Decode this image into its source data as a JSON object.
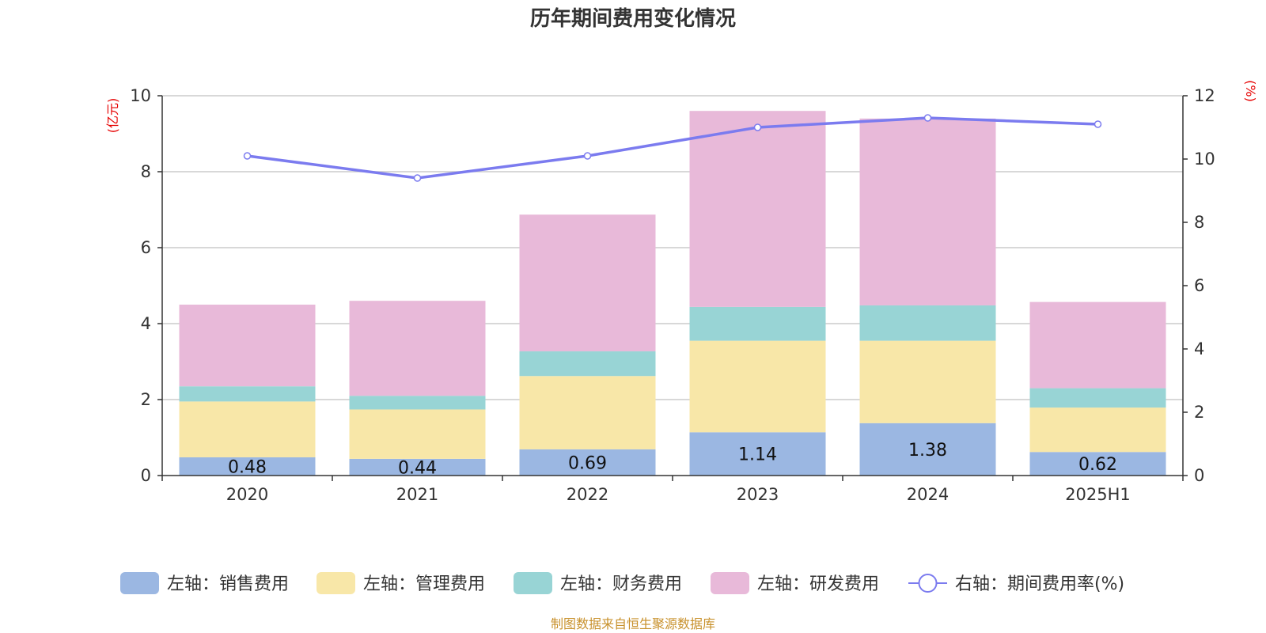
{
  "chart_data": {
    "type": "bar",
    "title": "历年期间费用变化情况",
    "left_axis_unit": "(亿元)",
    "right_axis_unit": "(%)",
    "categories": [
      "2020",
      "2021",
      "2022",
      "2023",
      "2024",
      "2025H1"
    ],
    "left_ylim": [
      0,
      10
    ],
    "left_ticks": [
      "0",
      "2",
      "4",
      "6",
      "8",
      "10"
    ],
    "right_ylim": [
      0,
      12
    ],
    "right_ticks": [
      "0",
      "2",
      "4",
      "6",
      "8",
      "10",
      "12"
    ],
    "grid": true,
    "legend_position": "bottom",
    "stacked_series": [
      {
        "name": "左轴：销售费用",
        "color": "#9bb7e2",
        "values": [
          0.48,
          0.44,
          0.69,
          1.14,
          1.38,
          0.62
        ],
        "labels": [
          "0.48",
          "0.44",
          "0.69",
          "1.14",
          "1.38",
          "0.62"
        ]
      },
      {
        "name": "左轴：管理费用",
        "color": "#f8e7a8",
        "values": [
          1.47,
          1.3,
          1.93,
          2.41,
          2.17,
          1.17
        ]
      },
      {
        "name": "左轴：财务费用",
        "color": "#98d4d5",
        "values": [
          0.4,
          0.36,
          0.65,
          0.89,
          0.93,
          0.51
        ]
      },
      {
        "name": "左轴：研发费用",
        "color": "#e8b9d9",
        "values": [
          2.15,
          2.5,
          3.6,
          5.16,
          4.92,
          2.27
        ]
      }
    ],
    "line_series": {
      "name": "右轴：期间费用率(%)",
      "color": "#7b7bef",
      "axis": "right",
      "values": [
        10.1,
        9.4,
        10.1,
        11.0,
        11.3,
        11.1
      ]
    },
    "source": "制图数据来自恒生聚源数据库"
  }
}
